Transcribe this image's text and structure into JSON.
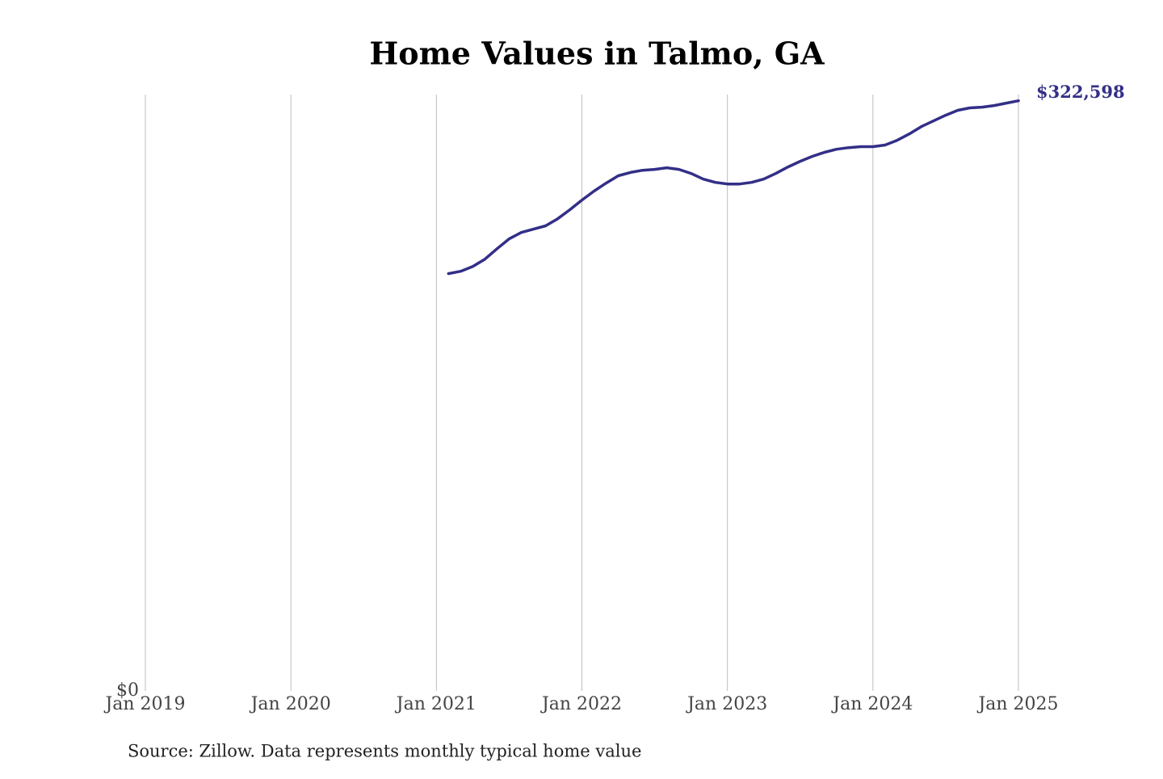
{
  "chart_data": {
    "type": "line",
    "title": "Home Values in Talmo, GA",
    "source": "Source: Zillow. Data represents monthly typical home value",
    "x": [
      "2021-02",
      "2021-03",
      "2021-04",
      "2021-05",
      "2021-06",
      "2021-07",
      "2021-08",
      "2021-09",
      "2021-10",
      "2021-11",
      "2021-12",
      "2022-01",
      "2022-02",
      "2022-03",
      "2022-04",
      "2022-05",
      "2022-06",
      "2022-07",
      "2022-08",
      "2022-09",
      "2022-10",
      "2022-11",
      "2022-12",
      "2023-01",
      "2023-02",
      "2023-03",
      "2023-04",
      "2023-05",
      "2023-06",
      "2023-07",
      "2023-08",
      "2023-09",
      "2023-10",
      "2023-11",
      "2023-12",
      "2024-01",
      "2024-02",
      "2024-03",
      "2024-04",
      "2024-05",
      "2024-06",
      "2024-07",
      "2024-08",
      "2024-09",
      "2024-10",
      "2024-11",
      "2024-12",
      "2025-01"
    ],
    "series": [
      {
        "name": "Typical home value",
        "color": "#332f87",
        "values": [
          228100,
          229400,
          232000,
          236000,
          241700,
          247100,
          250600,
          252400,
          254200,
          258100,
          263000,
          268300,
          273200,
          277600,
          281600,
          283400,
          284600,
          285100,
          286000,
          285100,
          282900,
          279800,
          278000,
          277100,
          277100,
          278000,
          279800,
          282900,
          286400,
          289500,
          292200,
          294400,
          296100,
          297000,
          297500,
          297500,
          298400,
          301000,
          304500,
          308500,
          311600,
          314700,
          317400,
          318700,
          319100,
          320000,
          321300,
          322598
        ],
        "value_labels": [
          null,
          null,
          null,
          null,
          null,
          null,
          null,
          null,
          null,
          null,
          null,
          null,
          null,
          null,
          null,
          null,
          null,
          null,
          null,
          null,
          null,
          null,
          null,
          null,
          null,
          null,
          null,
          null,
          null,
          null,
          null,
          null,
          null,
          null,
          null,
          null,
          null,
          null,
          null,
          null,
          null,
          null,
          null,
          null,
          null,
          null,
          null,
          "$322,598"
        ]
      }
    ],
    "xlim": [
      "2019-01",
      "2025-01"
    ],
    "xticks": [
      {
        "value": "2019-01",
        "label": "Jan 2019"
      },
      {
        "value": "2020-01",
        "label": "Jan 2020"
      },
      {
        "value": "2021-01",
        "label": "Jan 2021"
      },
      {
        "value": "2022-01",
        "label": "Jan 2022"
      },
      {
        "value": "2023-01",
        "label": "Jan 2023"
      },
      {
        "value": "2024-01",
        "label": "Jan 2024"
      },
      {
        "value": "2025-01",
        "label": "Jan 2025"
      }
    ],
    "ylim": [
      0,
      326000
    ],
    "yticks": [
      {
        "value": 0,
        "label": "$0"
      }
    ],
    "grid": "x"
  }
}
